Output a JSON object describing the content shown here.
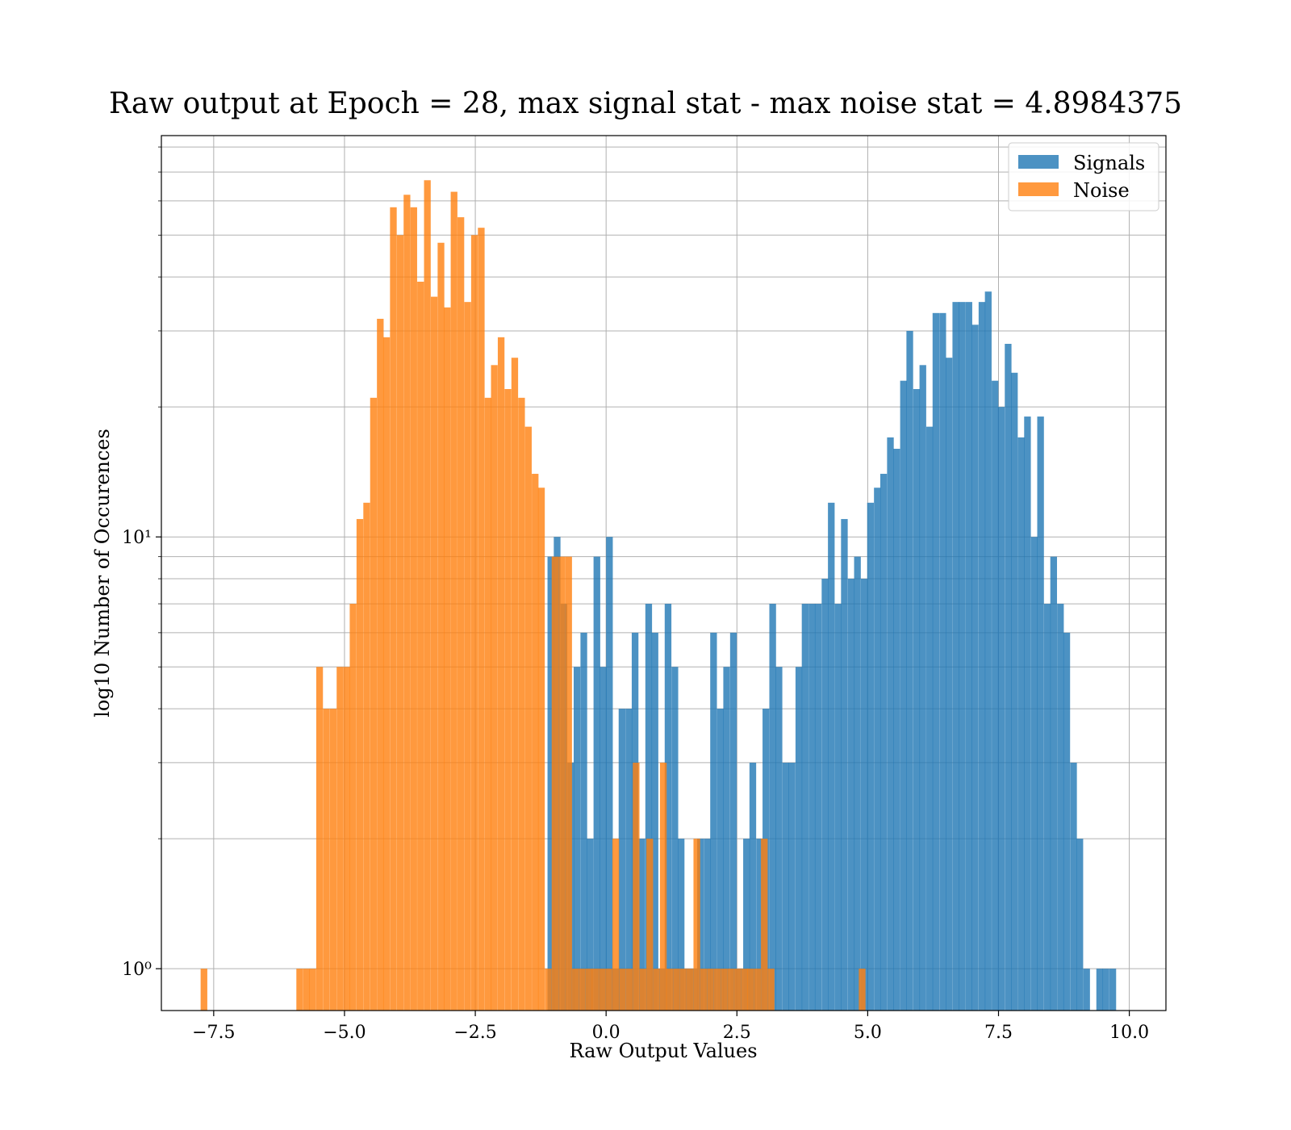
{
  "chart_data": {
    "type": "histogram",
    "title": "Raw output at Epoch = 28, max signal stat - max noise stat = 4.8984375",
    "xlabel": "Raw Output Values",
    "ylabel": "log10 Number of Occurences",
    "yscale": "log",
    "xlim": [
      -8.5,
      10.7
    ],
    "ylim": [
      0.8,
      85
    ],
    "x_ticks": [
      -7.5,
      -5.0,
      -2.5,
      0.0,
      2.5,
      5.0,
      7.5,
      10.0
    ],
    "x_tick_labels": [
      "−7.5",
      "−5.0",
      "−2.5",
      "0.0",
      "2.5",
      "5.0",
      "7.5",
      "10.0"
    ],
    "y_major_ticks": [
      1,
      10
    ],
    "y_tick_labels": [
      "10⁰",
      "10¹"
    ],
    "grid": true,
    "legend_position": "top-right",
    "series": [
      {
        "name": "Signals",
        "color": "#1f77b4",
        "opacity": 0.8,
        "bin_width": 0.128,
        "bins": [
          [
            -1.12,
            9
          ],
          [
            -1.0,
            10
          ],
          [
            -0.87,
            7
          ],
          [
            -0.74,
            3
          ],
          [
            -0.62,
            5
          ],
          [
            -0.49,
            6
          ],
          [
            -0.37,
            2
          ],
          [
            -0.24,
            9
          ],
          [
            -0.12,
            5
          ],
          [
            0.0,
            10
          ],
          [
            0.12,
            1
          ],
          [
            0.24,
            4
          ],
          [
            0.37,
            4
          ],
          [
            0.49,
            6
          ],
          [
            0.62,
            2
          ],
          [
            0.75,
            7
          ],
          [
            0.87,
            6
          ],
          [
            1.0,
            1
          ],
          [
            1.12,
            7
          ],
          [
            1.25,
            5
          ],
          [
            1.37,
            2
          ],
          [
            1.5,
            1
          ],
          [
            1.62,
            1
          ],
          [
            1.74,
            2
          ],
          [
            1.87,
            2
          ],
          [
            1.99,
            6
          ],
          [
            2.12,
            4
          ],
          [
            2.24,
            5
          ],
          [
            2.37,
            6
          ],
          [
            2.49,
            1
          ],
          [
            2.62,
            2
          ],
          [
            2.74,
            3
          ],
          [
            2.87,
            2
          ],
          [
            2.99,
            4
          ],
          [
            3.12,
            7
          ],
          [
            3.24,
            5
          ],
          [
            3.37,
            3
          ],
          [
            3.49,
            3
          ],
          [
            3.62,
            5
          ],
          [
            3.74,
            7
          ],
          [
            3.87,
            7
          ],
          [
            3.99,
            7
          ],
          [
            4.12,
            8
          ],
          [
            4.24,
            12
          ],
          [
            4.37,
            7
          ],
          [
            4.49,
            11
          ],
          [
            4.62,
            8
          ],
          [
            4.74,
            9
          ],
          [
            4.87,
            8
          ],
          [
            4.99,
            12
          ],
          [
            5.12,
            13
          ],
          [
            5.24,
            14
          ],
          [
            5.37,
            17
          ],
          [
            5.49,
            16
          ],
          [
            5.62,
            23
          ],
          [
            5.74,
            30
          ],
          [
            5.87,
            22
          ],
          [
            5.99,
            25
          ],
          [
            6.12,
            18
          ],
          [
            6.24,
            33
          ],
          [
            6.37,
            33
          ],
          [
            6.49,
            26
          ],
          [
            6.62,
            35
          ],
          [
            6.74,
            35
          ],
          [
            6.87,
            35
          ],
          [
            6.99,
            31
          ],
          [
            7.12,
            35
          ],
          [
            7.24,
            37
          ],
          [
            7.37,
            23
          ],
          [
            7.49,
            20
          ],
          [
            7.62,
            28
          ],
          [
            7.74,
            24
          ],
          [
            7.87,
            17
          ],
          [
            7.99,
            19
          ],
          [
            8.12,
            10
          ],
          [
            8.24,
            19
          ],
          [
            8.37,
            7
          ],
          [
            8.49,
            9
          ],
          [
            8.62,
            7
          ],
          [
            8.74,
            6
          ],
          [
            8.87,
            3
          ],
          [
            8.99,
            2
          ],
          [
            9.12,
            1
          ],
          [
            9.37,
            1
          ],
          [
            9.49,
            1
          ],
          [
            9.62,
            1
          ]
        ]
      },
      {
        "name": "Noise",
        "color": "#ff7f0e",
        "opacity": 0.8,
        "bin_width": 0.128,
        "bins": [
          [
            -7.75,
            1
          ],
          [
            -5.92,
            1
          ],
          [
            -5.79,
            1
          ],
          [
            -5.67,
            1
          ],
          [
            -5.54,
            5
          ],
          [
            -5.41,
            4
          ],
          [
            -5.28,
            4
          ],
          [
            -5.15,
            5
          ],
          [
            -5.02,
            5
          ],
          [
            -4.9,
            7
          ],
          [
            -4.77,
            11
          ],
          [
            -4.64,
            12
          ],
          [
            -4.51,
            21
          ],
          [
            -4.38,
            32
          ],
          [
            -4.26,
            29
          ],
          [
            -4.13,
            58
          ],
          [
            -4.0,
            50
          ],
          [
            -3.87,
            62
          ],
          [
            -3.74,
            58
          ],
          [
            -3.61,
            39
          ],
          [
            -3.48,
            67
          ],
          [
            -3.35,
            36
          ],
          [
            -3.22,
            48
          ],
          [
            -3.1,
            34
          ],
          [
            -2.97,
            63
          ],
          [
            -2.84,
            55
          ],
          [
            -2.71,
            35
          ],
          [
            -2.58,
            50
          ],
          [
            -2.45,
            52
          ],
          [
            -2.32,
            21
          ],
          [
            -2.2,
            25
          ],
          [
            -2.07,
            29
          ],
          [
            -1.94,
            22
          ],
          [
            -1.81,
            26
          ],
          [
            -1.68,
            21
          ],
          [
            -1.55,
            18
          ],
          [
            -1.42,
            14
          ],
          [
            -1.3,
            13
          ],
          [
            -1.17,
            1
          ],
          [
            -1.04,
            9
          ],
          [
            -0.91,
            9
          ],
          [
            -0.78,
            9
          ],
          [
            -0.65,
            1
          ],
          [
            -0.52,
            1
          ],
          [
            -0.39,
            1
          ],
          [
            -0.27,
            1
          ],
          [
            -0.14,
            1
          ],
          [
            -0.01,
            1
          ],
          [
            0.12,
            2
          ],
          [
            0.25,
            1
          ],
          [
            0.38,
            1
          ],
          [
            0.51,
            3
          ],
          [
            0.64,
            1
          ],
          [
            0.77,
            2
          ],
          [
            0.9,
            1
          ],
          [
            1.03,
            3
          ],
          [
            1.15,
            1
          ],
          [
            1.28,
            1
          ],
          [
            1.41,
            1
          ],
          [
            1.54,
            1
          ],
          [
            1.67,
            2
          ],
          [
            1.8,
            1
          ],
          [
            1.93,
            1
          ],
          [
            2.06,
            1
          ],
          [
            2.19,
            1
          ],
          [
            2.32,
            1
          ],
          [
            2.45,
            1
          ],
          [
            2.58,
            1
          ],
          [
            2.7,
            1
          ],
          [
            2.83,
            1
          ],
          [
            2.96,
            2
          ],
          [
            3.09,
            1
          ],
          [
            4.83,
            1
          ]
        ]
      }
    ]
  }
}
